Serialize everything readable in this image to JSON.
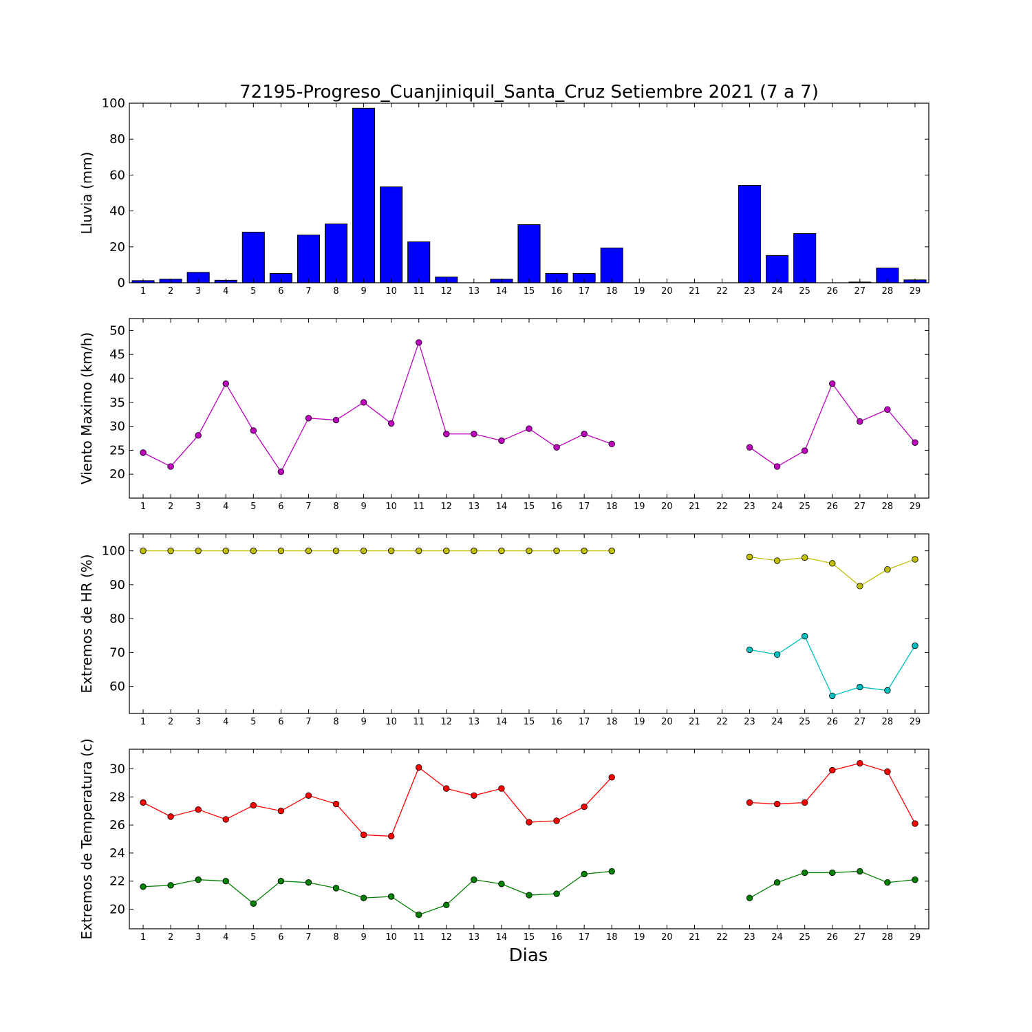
{
  "figure": {
    "title": "72195-Progreso_Cuanjiniquil_Santa_Cruz Setiembre 2021  (7 a 7)",
    "xlabel": "Dias"
  },
  "chart_data": [
    {
      "id": "lluvia",
      "type": "bar",
      "ylabel": "Lluvia (mm)",
      "ylim": [
        0,
        100
      ],
      "yticks": [
        0,
        20,
        40,
        60,
        80,
        100
      ],
      "categories": [
        "1",
        "2",
        "3",
        "4",
        "5",
        "6",
        "7",
        "8",
        "9",
        "10",
        "11",
        "12",
        "13",
        "14",
        "15",
        "16",
        "17",
        "18",
        "19",
        "20",
        "21",
        "22",
        "23",
        "24",
        "25",
        "26",
        "27",
        "28",
        "29"
      ],
      "series": [
        {
          "color": "#0000ff",
          "values": [
            1.2,
            2.0,
            5.8,
            1.4,
            28.2,
            5.2,
            26.6,
            32.8,
            97.2,
            53.4,
            22.8,
            3.2,
            0,
            2.0,
            32.4,
            5.2,
            5.2,
            19.4,
            0,
            0,
            0,
            0,
            54.2,
            15.2,
            27.4,
            0,
            0.4,
            8.2,
            1.6
          ]
        }
      ],
      "grid": false
    },
    {
      "id": "viento",
      "type": "line",
      "ylabel": "Viento Maximo (km/h)",
      "ylim": [
        15,
        52.5
      ],
      "yticks": [
        20,
        25,
        30,
        35,
        40,
        45,
        50
      ],
      "categories": [
        "1",
        "2",
        "3",
        "4",
        "5",
        "6",
        "7",
        "8",
        "9",
        "10",
        "11",
        "12",
        "13",
        "14",
        "15",
        "16",
        "17",
        "18",
        "19",
        "20",
        "21",
        "22",
        "23",
        "24",
        "25",
        "26",
        "27",
        "28",
        "29"
      ],
      "series": [
        {
          "color": "#bf00bf",
          "values": [
            24.5,
            21.6,
            28.1,
            38.9,
            29.1,
            20.5,
            31.7,
            31.3,
            35.0,
            30.6,
            47.5,
            28.4,
            28.4,
            27.0,
            29.5,
            25.6,
            28.4,
            26.3,
            null,
            null,
            null,
            null,
            25.6,
            21.6,
            24.9,
            38.9,
            31.0,
            33.5,
            26.6
          ]
        }
      ],
      "grid": false
    },
    {
      "id": "humedad",
      "type": "line",
      "ylabel": "Extremos de HR (%)",
      "ylim": [
        52,
        105
      ],
      "yticks": [
        60,
        70,
        80,
        90,
        100
      ],
      "categories": [
        "1",
        "2",
        "3",
        "4",
        "5",
        "6",
        "7",
        "8",
        "9",
        "10",
        "11",
        "12",
        "13",
        "14",
        "15",
        "16",
        "17",
        "18",
        "19",
        "20",
        "21",
        "22",
        "23",
        "24",
        "25",
        "26",
        "27",
        "28",
        "29"
      ],
      "series": [
        {
          "color": "#bfbf00",
          "values": [
            100,
            100,
            100,
            100,
            100,
            100,
            100,
            100,
            100,
            100,
            100,
            100,
            100,
            100,
            100,
            100,
            100,
            100,
            null,
            null,
            null,
            null,
            98.2,
            97.1,
            98.0,
            96.3,
            89.6,
            94.5,
            97.5
          ]
        },
        {
          "color": "#00bfbf",
          "values": [
            null,
            null,
            null,
            null,
            null,
            null,
            null,
            null,
            null,
            null,
            null,
            null,
            null,
            null,
            null,
            null,
            null,
            null,
            null,
            null,
            null,
            null,
            70.8,
            69.4,
            74.8,
            57.2,
            59.8,
            58.8,
            72.0
          ]
        }
      ],
      "grid": false
    },
    {
      "id": "temperatura",
      "type": "line",
      "ylabel": "Extremos de Temperatura (c)",
      "ylim": [
        18.6,
        31.4
      ],
      "yticks": [
        20,
        22,
        24,
        26,
        28,
        30
      ],
      "categories": [
        "1",
        "2",
        "3",
        "4",
        "5",
        "6",
        "7",
        "8",
        "9",
        "10",
        "11",
        "12",
        "13",
        "14",
        "15",
        "16",
        "17",
        "18",
        "19",
        "20",
        "21",
        "22",
        "23",
        "24",
        "25",
        "26",
        "27",
        "28",
        "29"
      ],
      "series": [
        {
          "color": "#ff0000",
          "values": [
            27.6,
            26.6,
            27.1,
            26.4,
            27.4,
            27.0,
            28.1,
            27.5,
            25.3,
            25.2,
            30.1,
            28.6,
            28.1,
            28.6,
            26.2,
            26.3,
            27.3,
            29.4,
            null,
            null,
            null,
            null,
            27.6,
            27.5,
            27.6,
            29.9,
            30.4,
            29.8,
            26.1
          ]
        },
        {
          "color": "#007f00",
          "values": [
            21.6,
            21.7,
            22.1,
            22.0,
            20.4,
            22.0,
            21.9,
            21.5,
            20.8,
            20.9,
            19.6,
            20.3,
            22.1,
            21.8,
            21.0,
            21.1,
            22.5,
            22.7,
            null,
            null,
            null,
            null,
            20.8,
            21.9,
            22.6,
            22.6,
            22.7,
            21.9,
            22.1
          ]
        }
      ],
      "grid": false
    }
  ]
}
